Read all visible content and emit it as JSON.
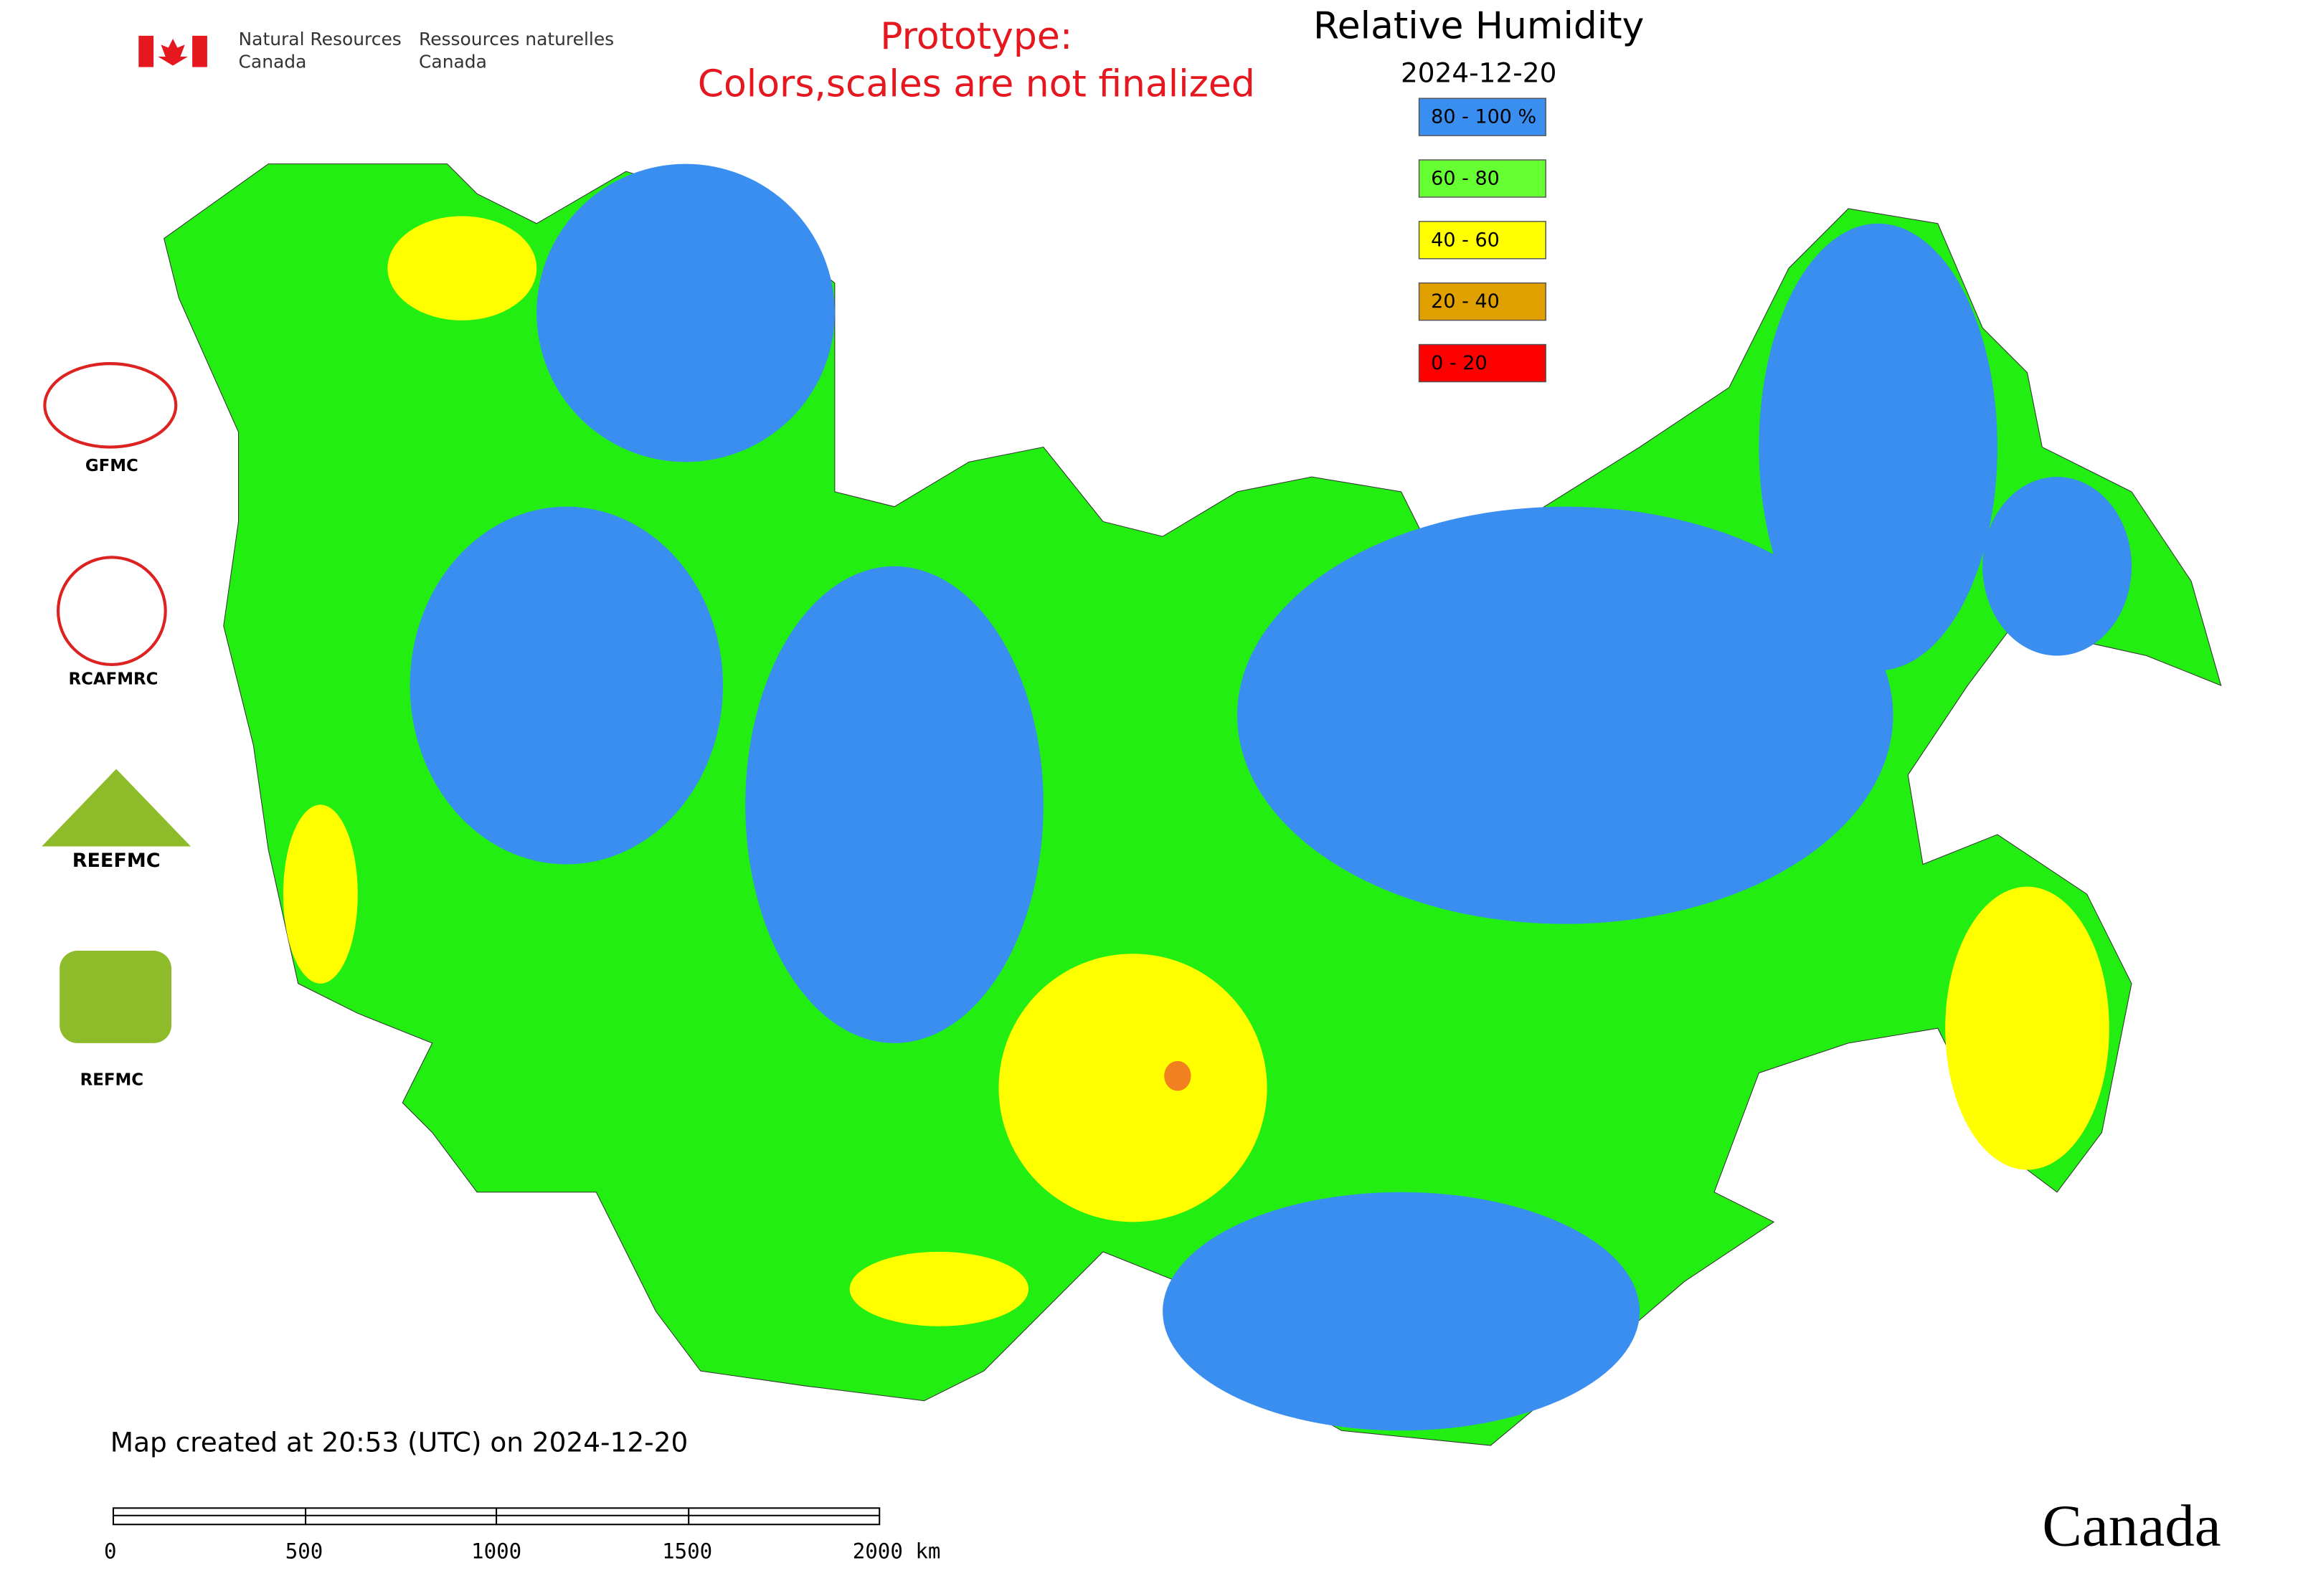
{
  "header": {
    "dept_en": [
      "Natural Resources",
      "Canada"
    ],
    "dept_fr": [
      "Ressources naturelles",
      "Canada"
    ]
  },
  "notice": [
    "Prototype:",
    "Colors,scales are not finalized"
  ],
  "title": "Relative Humidity",
  "date": "2024-12-20",
  "legend": [
    {
      "label": "80 - 100 %",
      "color": "#3a8ef0"
    },
    {
      "label": "60 - 80",
      "color": "#66ff33"
    },
    {
      "label": "40 - 60",
      "color": "#ffff00"
    },
    {
      "label": "20 - 40",
      "color": "#e0a000"
    },
    {
      "label": "0 - 20",
      "color": "#ff0000"
    }
  ],
  "logos": [
    "GFMC",
    "RCAFMRC",
    "REEFMC",
    "REFMC"
  ],
  "footer": "Map created at 20:53 (UTC) on 2024-12-20",
  "scale_bar": [
    "0",
    "500",
    "1000",
    "1500",
    "2000 km"
  ],
  "wordmark": "Canada"
}
